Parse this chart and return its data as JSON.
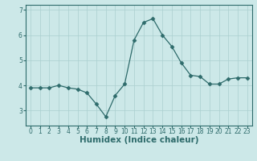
{
  "x": [
    0,
    1,
    2,
    3,
    4,
    5,
    6,
    7,
    8,
    9,
    10,
    11,
    12,
    13,
    14,
    15,
    16,
    17,
    18,
    19,
    20,
    21,
    22,
    23
  ],
  "y": [
    3.9,
    3.9,
    3.9,
    4.0,
    3.9,
    3.85,
    3.7,
    3.25,
    2.75,
    3.6,
    4.05,
    5.8,
    6.5,
    6.65,
    6.0,
    5.55,
    4.9,
    4.4,
    4.35,
    4.05,
    4.05,
    4.25,
    4.3,
    4.3
  ],
  "line_color": "#2e6b6b",
  "marker": "D",
  "marker_size": 2.5,
  "bg_color": "#cce8e8",
  "grid_color": "#aacfcf",
  "xlabel": "Humidex (Indice chaleur)",
  "ylim": [
    2.4,
    7.2
  ],
  "xlim": [
    -0.5,
    23.5
  ],
  "yticks": [
    3,
    4,
    5,
    6,
    7
  ],
  "xtick_labels": [
    "0",
    "1",
    "2",
    "3",
    "4",
    "5",
    "6",
    "7",
    "8",
    "9",
    "10",
    "11",
    "12",
    "13",
    "14",
    "15",
    "16",
    "17",
    "18",
    "19",
    "20",
    "21",
    "22",
    "23"
  ],
  "axis_color": "#2e6b6b",
  "tick_color": "#2e6b6b",
  "xlabel_fontsize": 7.5,
  "tick_fontsize": 5.5
}
